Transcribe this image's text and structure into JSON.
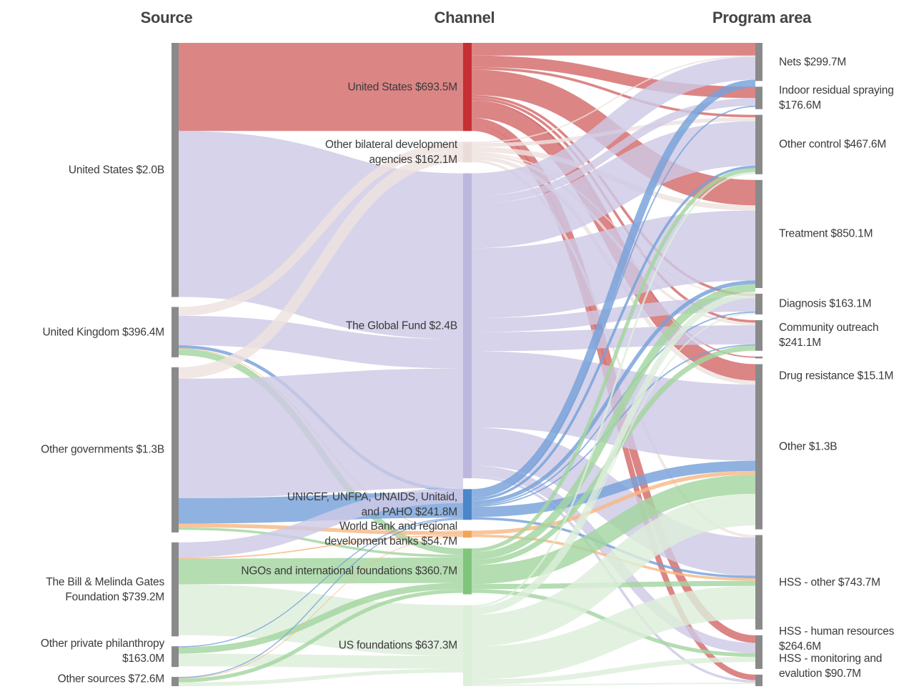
{
  "chart_data": {
    "type": "sankey",
    "column_titles": [
      "Source",
      "Channel",
      "Program area"
    ],
    "node_color": "#8a8a8a",
    "sources": {
      "names": [
        "United States",
        "United Kingdom",
        "Other governments",
        "The Bill & Melinda Gates Foundation",
        "Other private philanthropy",
        "Other sources"
      ],
      "values": [
        2000,
        396.4,
        1300,
        739.2,
        163.0,
        72.6
      ],
      "value_labels": [
        "$2.0B",
        "$396.4M",
        "$1.3B",
        "$739.2M",
        "$163.0M",
        "$72.6M"
      ]
    },
    "channels": {
      "names": [
        "United States",
        "Other bilateral development agencies",
        "The Global Fund",
        "UNICEF, UNFPA, UNAIDS, Unitaid, and PAHO",
        "World Bank and regional development banks",
        "NGOs and international foundations",
        "US foundations"
      ],
      "values": [
        693.5,
        162.1,
        2400,
        241.8,
        54.7,
        360.7,
        637.3
      ],
      "value_labels": [
        "$693.5M",
        "$162.1M",
        "$2.4B",
        "$241.8M",
        "$54.7M",
        "$360.7M",
        "$637.3M"
      ],
      "colors": [
        "#c62f33",
        "#eadcd8",
        "#bcb7dd",
        "#4b86c9",
        "#f5a35c",
        "#7fc67c",
        "#dcefd8"
      ],
      "flow_colors": [
        "#d46a6a",
        "#eee2df",
        "#cdc9e5",
        "#76a1d9",
        "#f8b884",
        "#a4d5a0",
        "#ddeedb"
      ]
    },
    "programs": {
      "names": [
        "Nets",
        "Indoor residual spraying",
        "Other control",
        "Treatment",
        "Diagnosis",
        "Community outreach",
        "Drug resistance",
        "Other",
        "HSS - other",
        "HSS - human resources",
        "HSS - monitoring and evalution"
      ],
      "values": [
        299.7,
        176.6,
        467.6,
        850.1,
        163.1,
        241.1,
        15.1,
        1300,
        743.7,
        264.6,
        90.7
      ],
      "value_labels": [
        "$299.7M",
        "$176.6M",
        "$467.6M",
        "$850.1M",
        "$163.1M",
        "$241.1M",
        "$15.1M",
        "$1.3B",
        "$743.7M",
        "$264.6M",
        "$90.7M"
      ]
    },
    "source_to_channel": [
      {
        "from": 0,
        "to": 0,
        "value": 693.5
      },
      {
        "from": 0,
        "to": 2,
        "value": 1306
      },
      {
        "from": 1,
        "to": 1,
        "value": 70
      },
      {
        "from": 1,
        "to": 2,
        "value": 230
      },
      {
        "from": 1,
        "to": 3,
        "value": 25
      },
      {
        "from": 1,
        "to": 4,
        "value": 5
      },
      {
        "from": 1,
        "to": 5,
        "value": 50
      },
      {
        "from": 2,
        "to": 1,
        "value": 90
      },
      {
        "from": 2,
        "to": 2,
        "value": 940
      },
      {
        "from": 2,
        "to": 3,
        "value": 200
      },
      {
        "from": 2,
        "to": 4,
        "value": 30
      },
      {
        "from": 2,
        "to": 5,
        "value": 20
      },
      {
        "from": 3,
        "to": 2,
        "value": 120
      },
      {
        "from": 3,
        "to": 4,
        "value": 10
      },
      {
        "from": 3,
        "to": 5,
        "value": 200
      },
      {
        "from": 3,
        "to": 6,
        "value": 400
      },
      {
        "from": 4,
        "to": 3,
        "value": 8
      },
      {
        "from": 4,
        "to": 5,
        "value": 50
      },
      {
        "from": 4,
        "to": 6,
        "value": 100
      },
      {
        "from": 5,
        "to": 3,
        "value": 8
      },
      {
        "from": 5,
        "to": 4,
        "value": 5
      },
      {
        "from": 5,
        "to": 5,
        "value": 30
      },
      {
        "from": 5,
        "to": 6,
        "value": 30
      }
    ],
    "channel_to_program": [
      {
        "from": 0,
        "to": 0,
        "value": 100
      },
      {
        "from": 0,
        "to": 1,
        "value": 90
      },
      {
        "from": 0,
        "to": 2,
        "value": 20
      },
      {
        "from": 0,
        "to": 3,
        "value": 200
      },
      {
        "from": 0,
        "to": 4,
        "value": 20
      },
      {
        "from": 0,
        "to": 5,
        "value": 20
      },
      {
        "from": 0,
        "to": 6,
        "value": 10
      },
      {
        "from": 0,
        "to": 7,
        "value": 130
      },
      {
        "from": 0,
        "to": 9,
        "value": 60
      },
      {
        "from": 0,
        "to": 10,
        "value": 43.5
      },
      {
        "from": 1,
        "to": 0,
        "value": 10
      },
      {
        "from": 1,
        "to": 2,
        "value": 30
      },
      {
        "from": 1,
        "to": 3,
        "value": 40
      },
      {
        "from": 1,
        "to": 4,
        "value": 10
      },
      {
        "from": 1,
        "to": 5,
        "value": 20
      },
      {
        "from": 1,
        "to": 7,
        "value": 30
      },
      {
        "from": 1,
        "to": 8,
        "value": 20
      },
      {
        "from": 2,
        "to": 0,
        "value": 180
      },
      {
        "from": 2,
        "to": 1,
        "value": 60
      },
      {
        "from": 2,
        "to": 2,
        "value": 350
      },
      {
        "from": 2,
        "to": 3,
        "value": 550
      },
      {
        "from": 2,
        "to": 4,
        "value": 110
      },
      {
        "from": 2,
        "to": 5,
        "value": 150
      },
      {
        "from": 2,
        "to": 7,
        "value": 600
      },
      {
        "from": 2,
        "to": 8,
        "value": 300
      },
      {
        "from": 2,
        "to": 9,
        "value": 80
      },
      {
        "from": 2,
        "to": 10,
        "value": 20
      },
      {
        "from": 3,
        "to": 0,
        "value": 60
      },
      {
        "from": 3,
        "to": 1,
        "value": 10
      },
      {
        "from": 3,
        "to": 2,
        "value": 20
      },
      {
        "from": 3,
        "to": 3,
        "value": 30
      },
      {
        "from": 3,
        "to": 4,
        "value": 10
      },
      {
        "from": 3,
        "to": 5,
        "value": 10
      },
      {
        "from": 3,
        "to": 7,
        "value": 80
      },
      {
        "from": 3,
        "to": 8,
        "value": 20
      },
      {
        "from": 4,
        "to": 7,
        "value": 30
      },
      {
        "from": 4,
        "to": 8,
        "value": 20
      },
      {
        "from": 5,
        "to": 2,
        "value": 30
      },
      {
        "from": 5,
        "to": 3,
        "value": 60
      },
      {
        "from": 5,
        "to": 5,
        "value": 40
      },
      {
        "from": 5,
        "to": 7,
        "value": 150
      },
      {
        "from": 5,
        "to": 8,
        "value": 40
      },
      {
        "from": 5,
        "to": 9,
        "value": 30
      },
      {
        "from": 6,
        "to": 2,
        "value": 15
      },
      {
        "from": 6,
        "to": 3,
        "value": 50
      },
      {
        "from": 6,
        "to": 4,
        "value": 10
      },
      {
        "from": 6,
        "to": 7,
        "value": 250
      },
      {
        "from": 6,
        "to": 8,
        "value": 260
      },
      {
        "from": 6,
        "to": 9,
        "value": 40
      },
      {
        "from": 6,
        "to": 10,
        "value": 10
      }
    ]
  }
}
